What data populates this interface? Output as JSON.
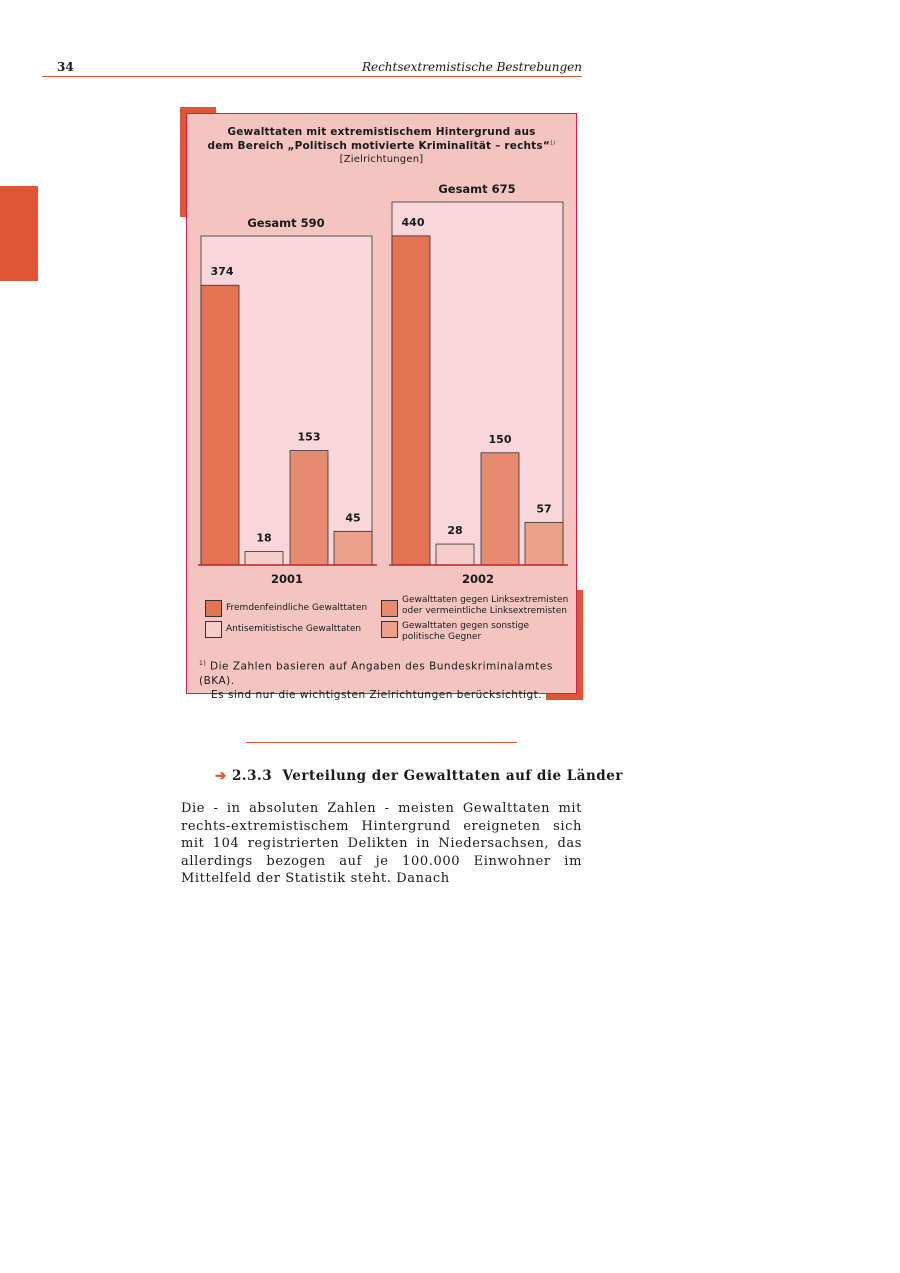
{
  "header": {
    "page_number": "34",
    "running_title": "Rechtsextremistische Bestrebungen"
  },
  "chart_data": {
    "type": "bar",
    "title_line1": "Gewalttaten mit extremistischem Hintergrund aus",
    "title_line2": "dem Bereich „Politisch motivierte Kriminalität – rechts“",
    "title_footnote_mark": "1)",
    "subtitle": "[Zielrichtungen]",
    "categories": [
      "2001",
      "2002"
    ],
    "totals": [
      "Gesamt 590",
      "Gesamt 675"
    ],
    "series": [
      {
        "name": "Fremdenfeindliche Gewalttaten",
        "values": [
          374,
          440
        ],
        "color": "#e37352"
      },
      {
        "name": "Antisemitistische Gewalttaten",
        "values": [
          18,
          28
        ],
        "color": "#f5cdca"
      },
      {
        "name": "Gewalttaten gegen Linksextremisten oder vermeintliche Linksextremisten",
        "name_line1": "Gewalttaten gegen Linksextremisten",
        "name_line2": "oder vermeintliche Linksextremisten",
        "values": [
          153,
          150
        ],
        "color": "#e68a70"
      },
      {
        "name": "Gewalttaten gegen sonstige politische Gegner",
        "name_line1": "Gewalttaten gegen sonstige",
        "name_line2": "politische Gegner",
        "values": [
          45,
          57
        ],
        "color": "#eba08a"
      }
    ],
    "footnote_mark": "1)",
    "footnote_line1": "Die Zahlen basieren auf Angaben des Bundeskriminalamtes (BKA).",
    "footnote_line2": "Es sind nur die wichtigsten Zielrichtungen berücksichtigt.",
    "legend_placement": "bottom",
    "grid": false
  },
  "section": {
    "arrow": "➔",
    "number": "2.3.3",
    "title": "Verteilung der Gewalttaten auf die Länder"
  },
  "body_text": "Die - in absoluten Zahlen - meisten Gewalttaten mit rechts-extremistischem Hintergrund ereigneten sich mit 104 registrierten Delikten in Niedersachsen, das allerdings bezogen auf je 100.000 Einwohner im Mittelfeld der Statistik steht. Danach"
}
